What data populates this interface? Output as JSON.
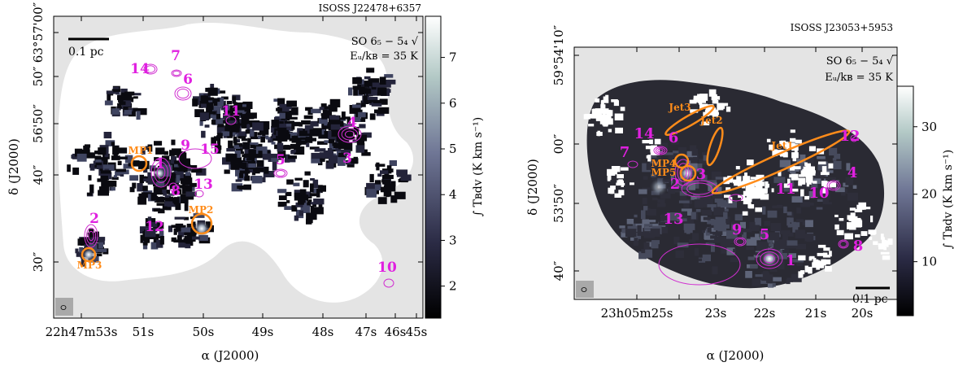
{
  "panels": [
    {
      "name": "left",
      "title": "ISOSS J22478+6357",
      "line_label": "SO 6₅ − 5₄ √",
      "energy_label": "Eᵤ/kʙ = 35 K",
      "scalebar_label": "0.1 pc",
      "x_label": "α (J2000)",
      "y_label": "δ (J2000)",
      "colorbar_label": "∫ Tʙdv (K km s⁻¹)",
      "x_ticks": [
        "22h47m53s",
        "51s",
        "50s",
        "49s",
        "48s",
        "47s",
        "46s",
        "45s"
      ],
      "y_ticks": [
        "63°57'00″",
        "50″",
        "56'50″",
        "40″",
        "30″"
      ],
      "colorbar_ticks": [
        "2",
        "3",
        "4",
        "5",
        "6",
        "7"
      ],
      "colorbar_range": [
        1.3,
        7.9
      ],
      "markers": [
        "1",
        "2",
        "3",
        "4",
        "5",
        "6",
        "7",
        "8",
        "9",
        "10",
        "11",
        "12",
        "13",
        "14",
        "15"
      ],
      "outflows": [
        "MP1",
        "MP2",
        "MP3"
      ]
    },
    {
      "name": "right",
      "title": "ISOSS J23053+5953",
      "line_label": "SO 6₅ − 5₄ √",
      "energy_label": "Eᵤ/kʙ = 35 K",
      "scalebar_label": "0.1 pc",
      "x_label": "α (J2000)",
      "y_label": "δ (J2000)",
      "colorbar_label": "∫ Tʙdv (K km s⁻¹)",
      "x_ticks": [
        "23h05m25s",
        "24s",
        "23s",
        "22s",
        "21s",
        "20s"
      ],
      "y_ticks": [
        "59°54'10″",
        "00″",
        "53'50″",
        "40″"
      ],
      "colorbar_ticks": [
        "10",
        "20",
        "30"
      ],
      "colorbar_range": [
        2,
        36
      ],
      "markers": [
        "1",
        "2",
        "3",
        "4",
        "5",
        "6",
        "7",
        "8",
        "9",
        "10",
        "11",
        "12",
        "13",
        "14"
      ],
      "outflows": [
        "MP4",
        "MP5"
      ],
      "jets": [
        "Jet1",
        "Jet2",
        "Jet3"
      ]
    }
  ]
}
